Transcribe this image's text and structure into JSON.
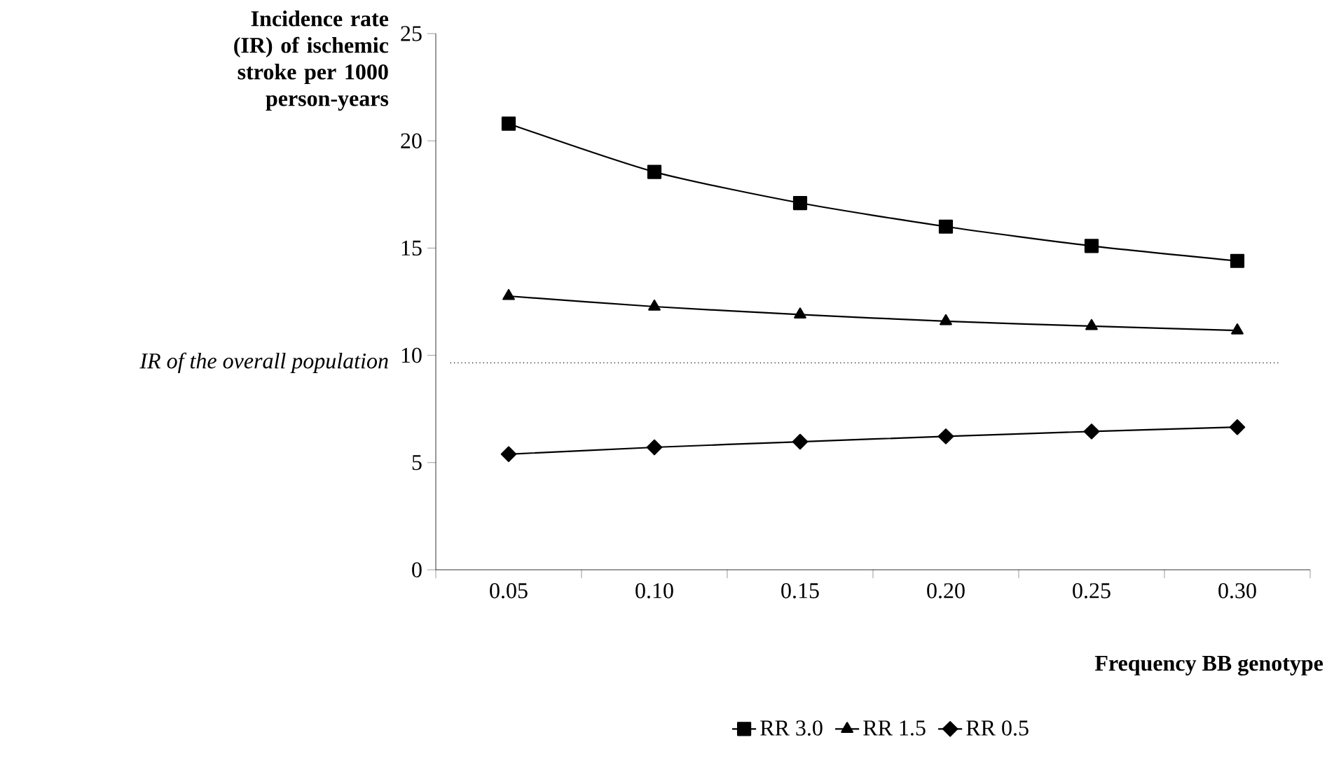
{
  "chart_data": {
    "type": "line",
    "ylabel": "Incidence rate (IR) of ischemic stroke per 1000 person-years",
    "xlabel": "Frequency BB genotype",
    "categories": [
      "0.05",
      "0.10",
      "0.15",
      "0.20",
      "0.25",
      "0.30"
    ],
    "series": [
      {
        "name": "RR 3.0",
        "color": "#000000",
        "marker": "square",
        "values": [
          20.8,
          18.55,
          17.1,
          16.0,
          15.1,
          14.4
        ]
      },
      {
        "name": "RR 1.5",
        "color": "#000000",
        "marker": "triangle",
        "values": [
          12.76,
          12.27,
          11.9,
          11.59,
          11.36,
          11.16
        ]
      },
      {
        "name": "RR 0.5",
        "color": "#000000",
        "marker": "diamond",
        "values": [
          5.39,
          5.71,
          5.97,
          6.22,
          6.45,
          6.65
        ]
      }
    ],
    "ylim": [
      0,
      25
    ],
    "yticks": [
      0,
      5,
      10,
      15,
      20,
      25
    ],
    "ref_lines": [
      {
        "axis": "y",
        "value": 9.65,
        "label": "IR of the overall population",
        "line_style": "dotted"
      }
    ],
    "legend": "bottom",
    "grid": false,
    "line_style": "solid"
  }
}
